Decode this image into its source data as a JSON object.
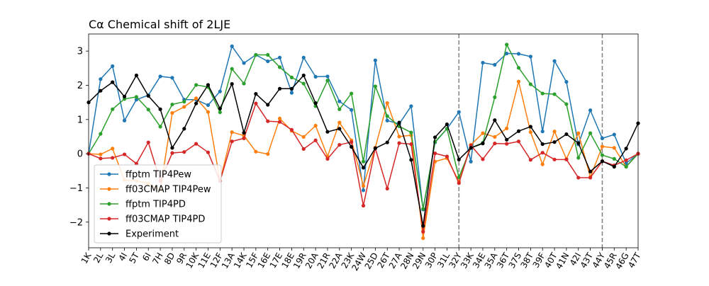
{
  "chart_data": {
    "type": "line",
    "title": "Cα Chemical shift of 2LJE",
    "xlabel": "",
    "ylabel": "",
    "ylim": [
      -2.75,
      3.5
    ],
    "yticks": [
      -2,
      -1,
      0,
      1,
      2,
      3
    ],
    "grid": false,
    "legend_position": "lower-left",
    "vlines": [
      "32Y",
      "44Y"
    ],
    "vline_color": "#808080",
    "categories": [
      "1K",
      "2L",
      "3L",
      "4I",
      "5T",
      "6I",
      "7H",
      "8D",
      "9R",
      "10K",
      "11E",
      "12F",
      "13A",
      "14K",
      "15F",
      "16E",
      "17E",
      "18E",
      "19R",
      "20A",
      "21R",
      "22A",
      "23K",
      "24W",
      "25D",
      "26T",
      "27A",
      "28N",
      "29N",
      "30P",
      "31L",
      "32Y",
      "33K",
      "34E",
      "35A",
      "36T",
      "37S",
      "38T",
      "39F",
      "40T",
      "41N",
      "42I",
      "43T",
      "44Y",
      "45R",
      "46G",
      "47T"
    ],
    "series": [
      {
        "name": "ffptm TIP4Pew",
        "color": "#1f77b4",
        "values": [
          0.0,
          2.18,
          2.56,
          0.97,
          1.58,
          1.71,
          2.26,
          2.22,
          1.58,
          1.58,
          1.42,
          1.82,
          3.14,
          2.65,
          2.89,
          2.7,
          2.81,
          1.78,
          2.81,
          2.25,
          2.26,
          1.53,
          1.28,
          -1.07,
          2.73,
          0.97,
          0.87,
          1.39,
          -1.63,
          0.33,
          0.73,
          1.22,
          -0.23,
          2.66,
          2.6,
          2.93,
          2.92,
          2.84,
          0.65,
          2.71,
          2.1,
          0.27,
          1.27,
          0.45,
          0.56,
          -0.28,
          0.0
        ]
      },
      {
        "name": "ff03CMAP TIP4Pew",
        "color": "#ff7f0e",
        "values": [
          0.0,
          -0.02,
          0.15,
          -0.77,
          -0.79,
          -0.87,
          -1.06,
          1.19,
          1.37,
          1.62,
          1.22,
          -0.8,
          0.63,
          0.53,
          0.06,
          -0.01,
          1.03,
          0.67,
          0.49,
          0.82,
          -0.08,
          0.91,
          0.39,
          -0.94,
          0.18,
          1.48,
          0.5,
          0.54,
          -2.47,
          -0.23,
          -0.13,
          -0.81,
          0.26,
          0.6,
          0.49,
          0.74,
          2.11,
          0.63,
          -0.31,
          0.65,
          -0.15,
          0.6,
          -0.68,
          0.21,
          0.17,
          -0.38,
          0.0
        ]
      },
      {
        "name": "ffptm TIP4PD",
        "color": "#2ca02c",
        "values": [
          0.0,
          0.58,
          1.3,
          1.6,
          1.66,
          1.29,
          0.79,
          1.44,
          1.52,
          2.01,
          1.95,
          1.21,
          2.48,
          2.05,
          2.89,
          2.89,
          2.53,
          2.23,
          2.05,
          1.39,
          2.14,
          1.3,
          1.76,
          -0.23,
          1.97,
          1.1,
          0.8,
          0.62,
          -1.61,
          0.35,
          0.73,
          -0.69,
          0.17,
          0.32,
          1.65,
          3.19,
          2.51,
          2.03,
          1.76,
          1.74,
          1.45,
          -0.12,
          0.6,
          -0.04,
          -0.15,
          -0.38,
          0.0
        ]
      },
      {
        "name": "ff03CMAP TIP4PD",
        "color": "#d62728",
        "values": [
          0.0,
          -0.14,
          -0.12,
          -0.02,
          -0.29,
          0.33,
          -0.8,
          0.02,
          0.05,
          0.29,
          0.04,
          -0.8,
          0.36,
          0.45,
          1.47,
          0.95,
          0.93,
          0.7,
          0.14,
          0.39,
          -0.15,
          0.26,
          0.34,
          -1.52,
          0.16,
          -1.02,
          0.31,
          0.28,
          -2.28,
          0.01,
          -0.08,
          -0.86,
          0.24,
          -0.16,
          0.3,
          0.29,
          0.36,
          -0.18,
          0.03,
          -0.17,
          -0.17,
          -0.7,
          -0.7,
          -0.22,
          -0.34,
          -0.19,
          0.0
        ]
      },
      {
        "name": "Experiment",
        "color": "#000000",
        "values": [
          1.5,
          1.84,
          2.09,
          1.67,
          2.29,
          1.69,
          1.3,
          0.17,
          0.73,
          1.47,
          2.01,
          1.32,
          2.04,
          0.61,
          1.75,
          1.43,
          1.9,
          1.9,
          2.29,
          1.48,
          0.64,
          0.73,
          0.2,
          -0.41,
          0.16,
          0.33,
          0.91,
          -0.18,
          -2.11,
          0.48,
          0.86,
          -0.17,
          0.17,
          0.3,
          0.98,
          0.41,
          0.66,
          0.79,
          0.28,
          0.34,
          0.57,
          0.31,
          -0.52,
          -0.22,
          -0.38,
          0.15,
          0.89
        ]
      }
    ]
  }
}
